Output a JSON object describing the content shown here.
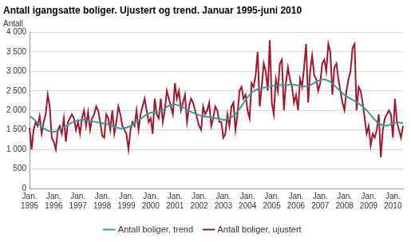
{
  "chart_data": {
    "type": "line",
    "title": "Antall igangsatte boliger. Ujustert og trend. Januar 1995-juni 2010",
    "ylabel": "Antall",
    "categories": [
      "Jan. 1995",
      null,
      null,
      null,
      null,
      null,
      null,
      null,
      null,
      null,
      null,
      null,
      "Jan. 1996",
      null,
      null,
      null,
      null,
      null,
      null,
      null,
      null,
      null,
      null,
      null,
      "Jan. 1997",
      null,
      null,
      null,
      null,
      null,
      null,
      null,
      null,
      null,
      null,
      null,
      "Jan. 1998",
      null,
      null,
      null,
      null,
      null,
      null,
      null,
      null,
      null,
      null,
      null,
      "Jan. 1999",
      null,
      null,
      null,
      null,
      null,
      null,
      null,
      null,
      null,
      null,
      null,
      "Jan. 2000",
      null,
      null,
      null,
      null,
      null,
      null,
      null,
      null,
      null,
      null,
      null,
      "Jan. 2001",
      null,
      null,
      null,
      null,
      null,
      null,
      null,
      null,
      null,
      null,
      null,
      "Jan. 2002",
      null,
      null,
      null,
      null,
      null,
      null,
      null,
      null,
      null,
      null,
      null,
      "Jan. 2003",
      null,
      null,
      null,
      null,
      null,
      null,
      null,
      null,
      null,
      null,
      null,
      "Jan. 2004",
      null,
      null,
      null,
      null,
      null,
      null,
      null,
      null,
      null,
      null,
      null,
      "Jan. 2005",
      null,
      null,
      null,
      null,
      null,
      null,
      null,
      null,
      null,
      null,
      null,
      "Jan. 2006",
      null,
      null,
      null,
      null,
      null,
      null,
      null,
      null,
      null,
      null,
      null,
      "Jan. 2007",
      null,
      null,
      null,
      null,
      null,
      null,
      null,
      null,
      null,
      null,
      null,
      "Jan. 2008",
      null,
      null,
      null,
      null,
      null,
      null,
      null,
      null,
      null,
      null,
      null,
      "Jan. 2009",
      null,
      null,
      null,
      null,
      null,
      null,
      null,
      null,
      null,
      null,
      null,
      "Jan. 2010",
      null,
      null,
      null,
      null,
      null
    ],
    "series": [
      {
        "name": "Antall boliger, trend",
        "color": "#2fa0a0",
        "line_style": "solid",
        "marker": "none",
        "values": [
          1850,
          1820,
          1780,
          1730,
          1680,
          1630,
          1580,
          1540,
          1510,
          1480,
          1460,
          1450,
          1450,
          1460,
          1480,
          1510,
          1540,
          1570,
          1600,
          1630,
          1660,
          1690,
          1710,
          1730,
          1740,
          1750,
          1760,
          1760,
          1750,
          1740,
          1730,
          1720,
          1710,
          1700,
          1690,
          1680,
          1670,
          1660,
          1650,
          1640,
          1620,
          1600,
          1580,
          1560,
          1550,
          1540,
          1540,
          1550,
          1560,
          1580,
          1600,
          1630,
          1660,
          1700,
          1740,
          1780,
          1820,
          1860,
          1890,
          1920,
          1940,
          1950,
          1950,
          1950,
          1960,
          1980,
          2010,
          2050,
          2090,
          2120,
          2140,
          2150,
          2150,
          2140,
          2120,
          2100,
          2080,
          2050,
          2020,
          1990,
          1960,
          1940,
          1920,
          1900,
          1880,
          1860,
          1850,
          1840,
          1830,
          1830,
          1820,
          1810,
          1800,
          1790,
          1780,
          1770,
          1760,
          1760,
          1770,
          1790,
          1820,
          1860,
          1910,
          1970,
          2040,
          2110,
          2190,
          2270,
          2340,
          2400,
          2450,
          2490,
          2520,
          2540,
          2560,
          2570,
          2580,
          2590,
          2600,
          2610,
          2620,
          2630,
          2640,
          2640,
          2650,
          2650,
          2650,
          2650,
          2650,
          2660,
          2660,
          2660,
          2650,
          2640,
          2630,
          2620,
          2610,
          2610,
          2620,
          2640,
          2670,
          2700,
          2730,
          2760,
          2780,
          2790,
          2790,
          2780,
          2760,
          2730,
          2690,
          2640,
          2590,
          2540,
          2490,
          2440,
          2400,
          2360,
          2330,
          2300,
          2270,
          2240,
          2210,
          2180,
          2140,
          2100,
          2050,
          2000,
          1940,
          1880,
          1820,
          1760,
          1710,
          1670,
          1640,
          1620,
          1610,
          1610,
          1620,
          1640,
          1660,
          1680,
          1690,
          1690,
          1680,
          1670
        ]
      },
      {
        "name": "Antall boliger, ujustert",
        "color": "#a3162c",
        "line_style": "solid",
        "marker": "none",
        "values": [
          1550,
          1000,
          1500,
          1700,
          1600,
          1850,
          1400,
          1700,
          1900,
          2400,
          2100,
          1300,
          1200,
          1000,
          1500,
          1600,
          1400,
          1800,
          1200,
          1700,
          1800,
          1900,
          1800,
          1500,
          1700,
          1400,
          1800,
          2000,
          1600,
          1950,
          1500,
          1800,
          1900,
          2100,
          2000,
          1700,
          1350,
          1300,
          1900,
          1800,
          1500,
          2000,
          1400,
          1700,
          2100,
          1900,
          1600,
          1500,
          1400,
          1000,
          1500,
          1700,
          1600,
          2000,
          1500,
          1900,
          2100,
          2300,
          2000,
          1700,
          1800,
          1400,
          2300,
          1900,
          1800,
          2300,
          1700,
          2000,
          2500,
          2300,
          2100,
          1900,
          2700,
          2300,
          2500,
          2000,
          2200,
          2400,
          1700,
          2100,
          2300,
          2200,
          2000,
          1800,
          1600,
          1500,
          2100,
          1900,
          2000,
          2200,
          1600,
          1800,
          2100,
          2000,
          1700,
          1700,
          1300,
          1400,
          1900,
          1600,
          2100,
          2200,
          1500,
          1900,
          2500,
          2600,
          2300,
          2400,
          2000,
          1800,
          2700,
          2600,
          2900,
          3500,
          2100,
          2600,
          3200,
          3000,
          2500,
          3800,
          2200,
          1900,
          2800,
          2500,
          3200,
          3300,
          2000,
          2700,
          3100,
          2800,
          2600,
          2200,
          2400,
          2000,
          2800,
          2600,
          3100,
          3700,
          2200,
          3000,
          3400,
          2900,
          2800,
          2500,
          2700,
          3200,
          3300,
          3000,
          3700,
          3500,
          2400,
          3100,
          3200,
          2800,
          2500,
          2200,
          2000,
          2500,
          2800,
          3000,
          3600,
          3700,
          2000,
          2600,
          2500,
          2200,
          1800,
          1400,
          1600,
          1100,
          1400,
          1300,
          1500,
          1900,
          800,
          1500,
          1800,
          1900,
          2000,
          1900,
          1300,
          2300,
          1700,
          1500,
          1300,
          1600
        ]
      }
    ],
    "ylim": [
      0,
      4000
    ],
    "yticks": [
      0,
      500,
      {
        "value": 1000,
        "label": "1 000"
      },
      {
        "value": 1500,
        "label": "1 500"
      },
      {
        "value": 2000,
        "label": "2 000"
      },
      {
        "value": 2500,
        "label": "2 500"
      },
      {
        "value": 3000,
        "label": "3 000"
      },
      {
        "value": 3500,
        "label": "3 500"
      },
      {
        "value": 4000,
        "label": "4 000"
      }
    ],
    "grid": true,
    "legend": "bottom"
  }
}
